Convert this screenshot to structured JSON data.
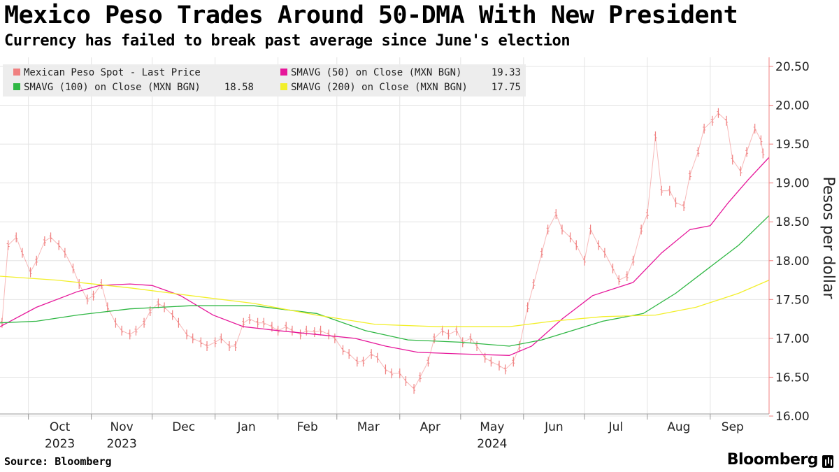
{
  "chart_data": {
    "type": "line",
    "title": "Mexico Peso Trades Around 50-DMA With New President",
    "subtitle": "Currency has failed to break past average since June's election",
    "ylabel": "Pesos per dollar",
    "ylim": [
      16.0,
      20.5
    ],
    "y_ticks": [
      "16.00",
      "16.50",
      "17.00",
      "17.50",
      "18.00",
      "18.50",
      "19.00",
      "19.50",
      "20.00",
      "20.50"
    ],
    "x_ticks": [
      {
        "month": "Oct",
        "year": "2023",
        "date": "2023-10-01"
      },
      {
        "month": "Nov",
        "year": "2023",
        "date": "2023-11-01"
      },
      {
        "month": "Dec",
        "year": "",
        "date": "2023-12-01"
      },
      {
        "month": "Jan",
        "year": "",
        "date": "2024-01-01"
      },
      {
        "month": "Feb",
        "year": "",
        "date": "2024-02-01"
      },
      {
        "month": "Mar",
        "year": "",
        "date": "2024-03-01"
      },
      {
        "month": "Apr",
        "year": "",
        "date": "2024-04-01"
      },
      {
        "month": "May",
        "year": "2024",
        "date": "2024-05-01"
      },
      {
        "month": "Jun",
        "year": "",
        "date": "2024-06-01"
      },
      {
        "month": "Jul",
        "year": "",
        "date": "2024-07-01"
      },
      {
        "month": "Aug",
        "year": "",
        "date": "2024-08-01"
      },
      {
        "month": "Sep",
        "year": "",
        "date": "2024-09-01"
      }
    ],
    "x_range": [
      "2023-09-17",
      "2024-09-30"
    ],
    "grid": true,
    "legend": {
      "position": "top-left",
      "entries": [
        {
          "label": "Mexican Peso Spot - Last Price",
          "value": "",
          "color": "#f08080"
        },
        {
          "label": "SMAVG (50)  on Close (MXN BGN)",
          "value": "19.33",
          "color": "#e6179a"
        },
        {
          "label": "SMAVG (100)  on Close (MXN BGN)",
          "value": "18.58",
          "color": "#2fb744"
        },
        {
          "label": "SMAVG (200)  on Close (MXN BGN)",
          "value": "17.75",
          "color": "#f2ef2a"
        }
      ]
    },
    "series": [
      {
        "name": "Mexican Peso Spot - Last Price",
        "kind": "price",
        "color": "#f08080",
        "points": [
          [
            "2023-09-18",
            17.2
          ],
          [
            "2023-09-21",
            18.2
          ],
          [
            "2023-09-25",
            18.3
          ],
          [
            "2023-09-28",
            18.1
          ],
          [
            "2023-10-02",
            17.85
          ],
          [
            "2023-10-05",
            18.0
          ],
          [
            "2023-10-09",
            18.25
          ],
          [
            "2023-10-12",
            18.3
          ],
          [
            "2023-10-16",
            18.2
          ],
          [
            "2023-10-19",
            18.1
          ],
          [
            "2023-10-23",
            17.9
          ],
          [
            "2023-10-26",
            17.7
          ],
          [
            "2023-10-30",
            17.5
          ],
          [
            "2023-11-02",
            17.55
          ],
          [
            "2023-11-06",
            17.7
          ],
          [
            "2023-11-09",
            17.4
          ],
          [
            "2023-11-13",
            17.2
          ],
          [
            "2023-11-16",
            17.1
          ],
          [
            "2023-11-20",
            17.05
          ],
          [
            "2023-11-23",
            17.1
          ],
          [
            "2023-11-27",
            17.2
          ],
          [
            "2023-11-30",
            17.35
          ],
          [
            "2023-12-04",
            17.45
          ],
          [
            "2023-12-07",
            17.4
          ],
          [
            "2023-12-11",
            17.3
          ],
          [
            "2023-12-14",
            17.2
          ],
          [
            "2023-12-18",
            17.05
          ],
          [
            "2023-12-21",
            17.0
          ],
          [
            "2023-12-25",
            16.95
          ],
          [
            "2023-12-28",
            16.9
          ],
          [
            "2024-01-01",
            16.95
          ],
          [
            "2024-01-04",
            17.0
          ],
          [
            "2024-01-08",
            16.9
          ],
          [
            "2024-01-11",
            16.9
          ],
          [
            "2024-01-15",
            17.2
          ],
          [
            "2024-01-18",
            17.25
          ],
          [
            "2024-01-22",
            17.2
          ],
          [
            "2024-01-25",
            17.2
          ],
          [
            "2024-01-29",
            17.15
          ],
          [
            "2024-02-01",
            17.1
          ],
          [
            "2024-02-05",
            17.15
          ],
          [
            "2024-02-08",
            17.1
          ],
          [
            "2024-02-12",
            17.05
          ],
          [
            "2024-02-15",
            17.1
          ],
          [
            "2024-02-19",
            17.08
          ],
          [
            "2024-02-22",
            17.1
          ],
          [
            "2024-02-26",
            17.05
          ],
          [
            "2024-02-29",
            17.0
          ],
          [
            "2024-03-04",
            16.85
          ],
          [
            "2024-03-07",
            16.8
          ],
          [
            "2024-03-11",
            16.7
          ],
          [
            "2024-03-14",
            16.7
          ],
          [
            "2024-03-18",
            16.8
          ],
          [
            "2024-03-21",
            16.75
          ],
          [
            "2024-03-25",
            16.6
          ],
          [
            "2024-03-28",
            16.55
          ],
          [
            "2024-04-01",
            16.55
          ],
          [
            "2024-04-04",
            16.45
          ],
          [
            "2024-04-08",
            16.35
          ],
          [
            "2024-04-11",
            16.5
          ],
          [
            "2024-04-15",
            16.7
          ],
          [
            "2024-04-18",
            17.0
          ],
          [
            "2024-04-22",
            17.1
          ],
          [
            "2024-04-25",
            17.05
          ],
          [
            "2024-04-29",
            17.1
          ],
          [
            "2024-05-02",
            16.95
          ],
          [
            "2024-05-06",
            17.0
          ],
          [
            "2024-05-09",
            16.9
          ],
          [
            "2024-05-13",
            16.75
          ],
          [
            "2024-05-16",
            16.7
          ],
          [
            "2024-05-20",
            16.65
          ],
          [
            "2024-05-23",
            16.6
          ],
          [
            "2024-05-27",
            16.7
          ],
          [
            "2024-05-30",
            16.9
          ],
          [
            "2024-06-03",
            17.4
          ],
          [
            "2024-06-06",
            17.7
          ],
          [
            "2024-06-10",
            18.1
          ],
          [
            "2024-06-13",
            18.4
          ],
          [
            "2024-06-17",
            18.6
          ],
          [
            "2024-06-20",
            18.4
          ],
          [
            "2024-06-24",
            18.3
          ],
          [
            "2024-06-27",
            18.2
          ],
          [
            "2024-07-01",
            18.0
          ],
          [
            "2024-07-04",
            18.4
          ],
          [
            "2024-07-08",
            18.2
          ],
          [
            "2024-07-11",
            18.1
          ],
          [
            "2024-07-15",
            17.9
          ],
          [
            "2024-07-18",
            17.75
          ],
          [
            "2024-07-22",
            17.8
          ],
          [
            "2024-07-25",
            18.0
          ],
          [
            "2024-07-29",
            18.4
          ],
          [
            "2024-08-01",
            18.6
          ],
          [
            "2024-08-05",
            19.6
          ],
          [
            "2024-08-08",
            18.9
          ],
          [
            "2024-08-12",
            18.9
          ],
          [
            "2024-08-15",
            18.75
          ],
          [
            "2024-08-19",
            18.7
          ],
          [
            "2024-08-22",
            19.1
          ],
          [
            "2024-08-26",
            19.4
          ],
          [
            "2024-08-29",
            19.7
          ],
          [
            "2024-09-02",
            19.8
          ],
          [
            "2024-09-05",
            19.9
          ],
          [
            "2024-09-09",
            19.8
          ],
          [
            "2024-09-12",
            19.3
          ],
          [
            "2024-09-16",
            19.15
          ],
          [
            "2024-09-19",
            19.4
          ],
          [
            "2024-09-23",
            19.7
          ],
          [
            "2024-09-26",
            19.55
          ],
          [
            "2024-09-27",
            19.38
          ]
        ]
      },
      {
        "name": "SMAVG (50)  on Close (MXN BGN)",
        "kind": "line",
        "color": "#e6179a",
        "points": [
          [
            "2023-09-17",
            17.15
          ],
          [
            "2023-10-05",
            17.4
          ],
          [
            "2023-10-25",
            17.6
          ],
          [
            "2023-11-05",
            17.68
          ],
          [
            "2023-11-20",
            17.7
          ],
          [
            "2023-12-01",
            17.68
          ],
          [
            "2023-12-15",
            17.55
          ],
          [
            "2023-12-31",
            17.3
          ],
          [
            "2024-01-15",
            17.15
          ],
          [
            "2024-02-01",
            17.1
          ],
          [
            "2024-02-20",
            17.05
          ],
          [
            "2024-03-10",
            17.0
          ],
          [
            "2024-03-25",
            16.9
          ],
          [
            "2024-04-10",
            16.82
          ],
          [
            "2024-05-01",
            16.8
          ],
          [
            "2024-05-25",
            16.78
          ],
          [
            "2024-06-05",
            16.9
          ],
          [
            "2024-06-20",
            17.25
          ],
          [
            "2024-07-05",
            17.55
          ],
          [
            "2024-07-25",
            17.72
          ],
          [
            "2024-08-08",
            18.1
          ],
          [
            "2024-08-22",
            18.4
          ],
          [
            "2024-09-01",
            18.45
          ],
          [
            "2024-09-10",
            18.75
          ],
          [
            "2024-09-20",
            19.05
          ],
          [
            "2024-09-30",
            19.33
          ]
        ]
      },
      {
        "name": "SMAVG (100)  on Close (MXN BGN)",
        "kind": "line",
        "color": "#2fb744",
        "points": [
          [
            "2023-09-17",
            17.2
          ],
          [
            "2023-10-05",
            17.22
          ],
          [
            "2023-10-25",
            17.3
          ],
          [
            "2023-11-20",
            17.38
          ],
          [
            "2023-12-20",
            17.42
          ],
          [
            "2024-01-20",
            17.42
          ],
          [
            "2024-02-20",
            17.32
          ],
          [
            "2024-03-15",
            17.1
          ],
          [
            "2024-04-05",
            16.98
          ],
          [
            "2024-05-01",
            16.95
          ],
          [
            "2024-05-25",
            16.9
          ],
          [
            "2024-06-10",
            16.98
          ],
          [
            "2024-06-25",
            17.1
          ],
          [
            "2024-07-10",
            17.22
          ],
          [
            "2024-07-30",
            17.32
          ],
          [
            "2024-08-15",
            17.58
          ],
          [
            "2024-09-01",
            17.92
          ],
          [
            "2024-09-15",
            18.2
          ],
          [
            "2024-09-30",
            18.58
          ]
        ]
      },
      {
        "name": "SMAVG (200)  on Close (MXN BGN)",
        "kind": "line",
        "color": "#f2ef2a",
        "points": [
          [
            "2023-09-17",
            17.8
          ],
          [
            "2023-10-15",
            17.75
          ],
          [
            "2023-11-20",
            17.65
          ],
          [
            "2023-12-20",
            17.55
          ],
          [
            "2024-01-20",
            17.45
          ],
          [
            "2024-02-20",
            17.3
          ],
          [
            "2024-03-20",
            17.18
          ],
          [
            "2024-04-20",
            17.15
          ],
          [
            "2024-05-25",
            17.15
          ],
          [
            "2024-06-15",
            17.22
          ],
          [
            "2024-07-10",
            17.28
          ],
          [
            "2024-08-05",
            17.3
          ],
          [
            "2024-08-25",
            17.4
          ],
          [
            "2024-09-15",
            17.58
          ],
          [
            "2024-09-30",
            17.75
          ]
        ]
      }
    ]
  },
  "footer": {
    "source": "Source: Bloomberg",
    "brand": "Bloomberg"
  }
}
